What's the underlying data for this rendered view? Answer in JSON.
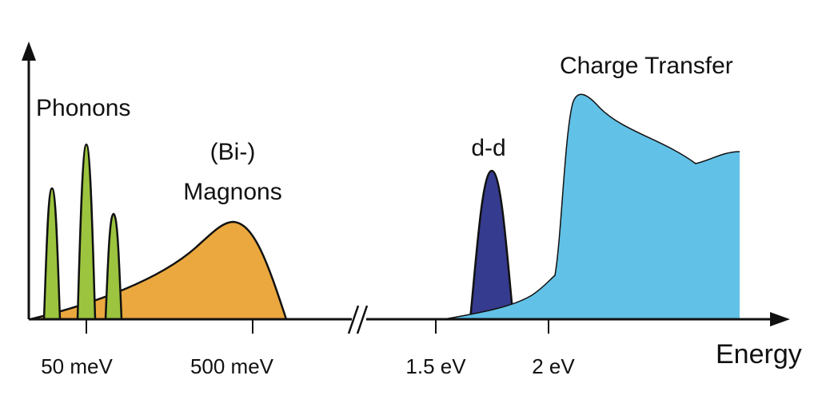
{
  "labels": {
    "phonons": "Phonons",
    "bimagnons_line1": "(Bi-)",
    "bimagnons_line2": "Magnons",
    "dd": "d-d",
    "charge_transfer": "Charge Transfer"
  },
  "x_axis": {
    "title": "Energy",
    "ticks": [
      "50 meV",
      "500 meV",
      "1.5 eV",
      "2 eV"
    ]
  },
  "colors": {
    "phonons": "#9cc43e",
    "magnons": "#eba83e",
    "dd": "#353b8e",
    "charge_transfer": "#62c1e6",
    "axis": "#111111"
  }
}
